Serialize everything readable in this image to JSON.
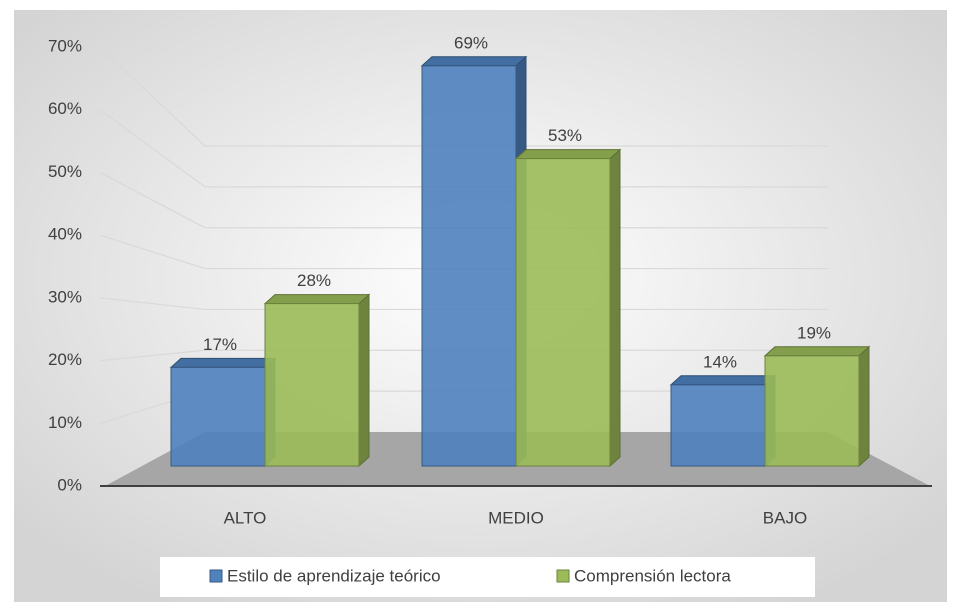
{
  "chart_data": {
    "type": "bar3d",
    "categories": [
      "ALTO",
      "MEDIO",
      "BAJO"
    ],
    "series": [
      {
        "name": "Estilo de aprendizaje teórico",
        "color": "#4f81bd",
        "values": [
          17,
          69,
          14
        ],
        "value_labels": [
          "17%",
          "69%",
          "14%"
        ]
      },
      {
        "name": "Comprensión lectora",
        "color": "#9bbb59",
        "values": [
          28,
          53,
          19
        ],
        "value_labels": [
          "28%",
          "53%",
          "19%"
        ]
      }
    ],
    "ylim": [
      0,
      70
    ],
    "yticks": [
      {
        "value": 0,
        "label": "0%"
      },
      {
        "value": 10,
        "label": "10%"
      },
      {
        "value": 20,
        "label": "20%"
      },
      {
        "value": 30,
        "label": "30%"
      },
      {
        "value": 40,
        "label": "40%"
      },
      {
        "value": 50,
        "label": "50%"
      },
      {
        "value": 60,
        "label": "60%"
      },
      {
        "value": 70,
        "label": "70%"
      }
    ],
    "grid": true,
    "legend": "bottom"
  }
}
